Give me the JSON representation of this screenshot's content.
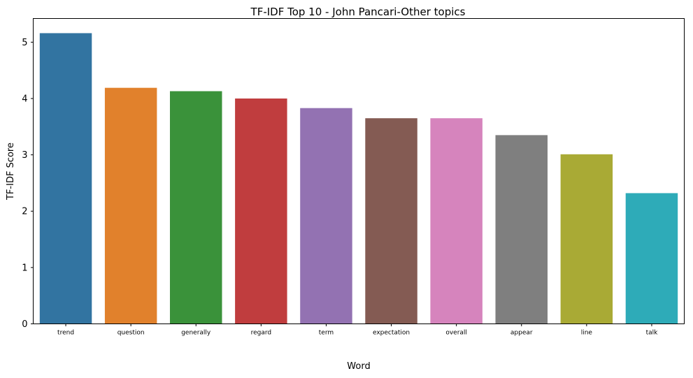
{
  "chart_data": {
    "type": "bar",
    "title": "TF-IDF Top 10 - John Pancari-Other topics",
    "xlabel": "Word",
    "ylabel": "TF-IDF Score",
    "categories": [
      "trend",
      "question",
      "generally",
      "regard",
      "term",
      "expectation",
      "overall",
      "appear",
      "line",
      "talk"
    ],
    "values": [
      5.16,
      4.19,
      4.13,
      4.0,
      3.83,
      3.65,
      3.65,
      3.35,
      3.01,
      2.32
    ],
    "colors": [
      "#3274a1",
      "#e1812c",
      "#3a923a",
      "#c03d3e",
      "#9372b2",
      "#845b53",
      "#d684bd",
      "#7f7f7f",
      "#a9aa35",
      "#2eabb8"
    ],
    "yticks": [
      "0",
      "1",
      "2",
      "3",
      "4",
      "5"
    ],
    "ylim": [
      0,
      5.42
    ],
    "grid": false,
    "legend": "none"
  }
}
